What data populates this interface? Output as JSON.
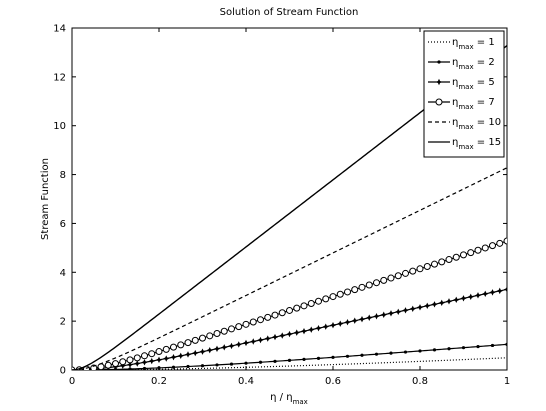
{
  "chart_data": {
    "type": "line",
    "title": "Solution of Stream Function",
    "xlabel": {
      "base": "η / η",
      "sub": "max"
    },
    "ylabel": "Stream Function",
    "xlim": [
      0,
      1
    ],
    "ylim": [
      0,
      14
    ],
    "xticks": [
      "0",
      "0.2",
      "0.4",
      "0.6",
      "0.8",
      "1"
    ],
    "yticks": [
      "0",
      "2",
      "4",
      "6",
      "8",
      "10",
      "12",
      "14"
    ],
    "legend_position": "top-right",
    "grid": false,
    "colors": {
      "line": "#000000",
      "background": "#ffffff"
    },
    "series": [
      {
        "name": {
          "base": "η",
          "sub": "max",
          "suffix": " = 1"
        },
        "eta_max": 1,
        "style": "dotted",
        "marker": "none",
        "end_value": 0.5
      },
      {
        "name": {
          "base": "η",
          "sub": "max",
          "suffix": " = 2"
        },
        "eta_max": 2,
        "style": "solid",
        "marker": "dot",
        "end_value": 1.05
      },
      {
        "name": {
          "base": "η",
          "sub": "max",
          "suffix": " = 5"
        },
        "eta_max": 5,
        "style": "solid",
        "marker": "star",
        "end_value": 3.3
      },
      {
        "name": {
          "base": "η",
          "sub": "max",
          "suffix": " = 7"
        },
        "eta_max": 7,
        "style": "solid",
        "marker": "circle",
        "end_value": 5.28
      },
      {
        "name": {
          "base": "η",
          "sub": "max",
          "suffix": " = 10"
        },
        "eta_max": 10,
        "style": "dashed",
        "marker": "none",
        "end_value": 8.28
      },
      {
        "name": {
          "base": "η",
          "sub": "max",
          "suffix": " = 15"
        },
        "eta_max": 15,
        "style": "solid",
        "marker": "none",
        "end_value": 13.28
      }
    ]
  }
}
